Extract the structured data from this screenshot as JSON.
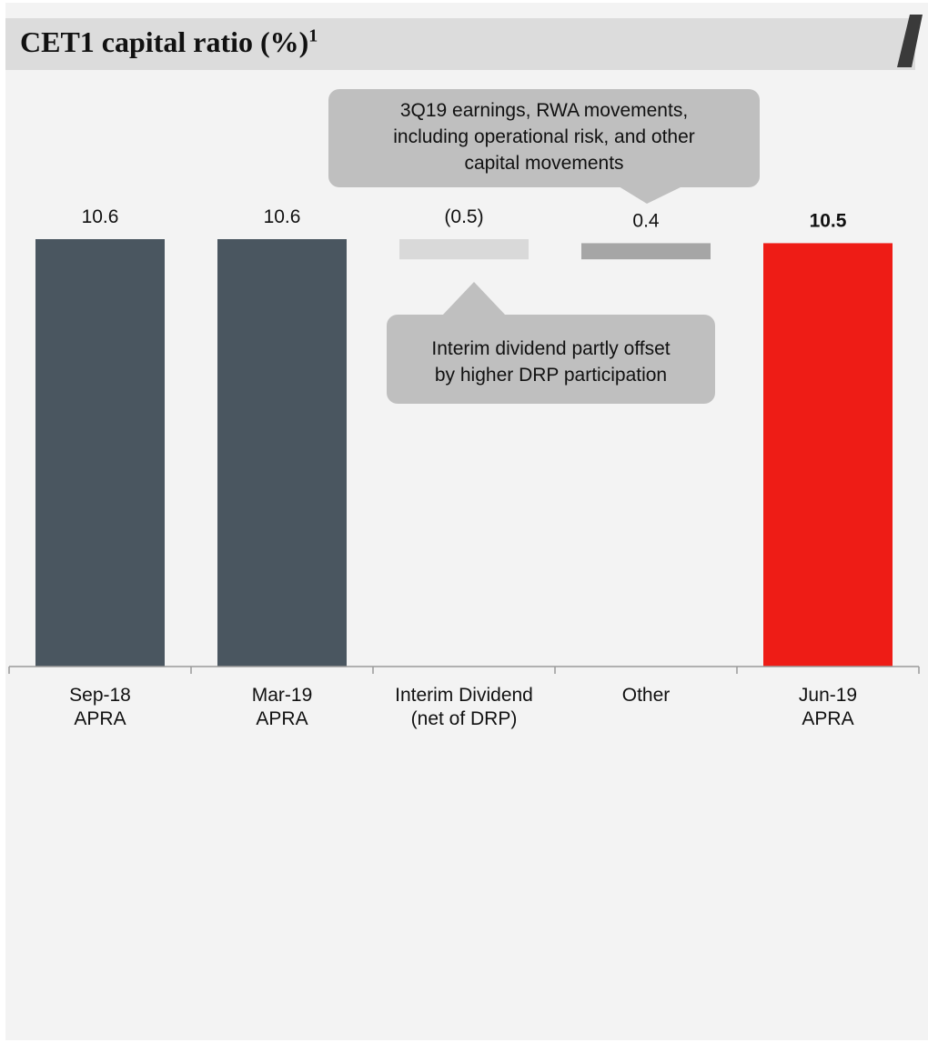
{
  "title": "CET1 capital ratio (%)",
  "title_superscript": "1",
  "chart_data": {
    "type": "bar",
    "subtype": "waterfall",
    "categories": [
      [
        "Sep-18",
        "APRA"
      ],
      [
        "Mar-19",
        "APRA"
      ],
      [
        "Interim Dividend",
        "(net of DRP)"
      ],
      [
        "Other"
      ],
      [
        "Jun-19",
        "APRA"
      ]
    ],
    "bars": [
      {
        "kind": "total",
        "value": 10.6,
        "label": "10.6",
        "color": "#4a5660"
      },
      {
        "kind": "total",
        "value": 10.6,
        "label": "10.6",
        "color": "#4a5660"
      },
      {
        "kind": "delta",
        "value": -0.5,
        "label": "(0.5)",
        "color": "#d9d9d9"
      },
      {
        "kind": "delta",
        "value": 0.4,
        "label": "0.4",
        "color": "#a6a6a6"
      },
      {
        "kind": "total",
        "value": 10.5,
        "label": "10.5",
        "color": "#ee1c16",
        "bold": true
      }
    ],
    "ylim": [
      0,
      11
    ],
    "grid": false,
    "legend": "none"
  },
  "callouts": {
    "top": [
      "3Q19 earnings, RWA movements,",
      "including operational risk, and other",
      "capital movements"
    ],
    "bottom": [
      "Interim dividend partly offset",
      "by higher DRP participation"
    ]
  }
}
